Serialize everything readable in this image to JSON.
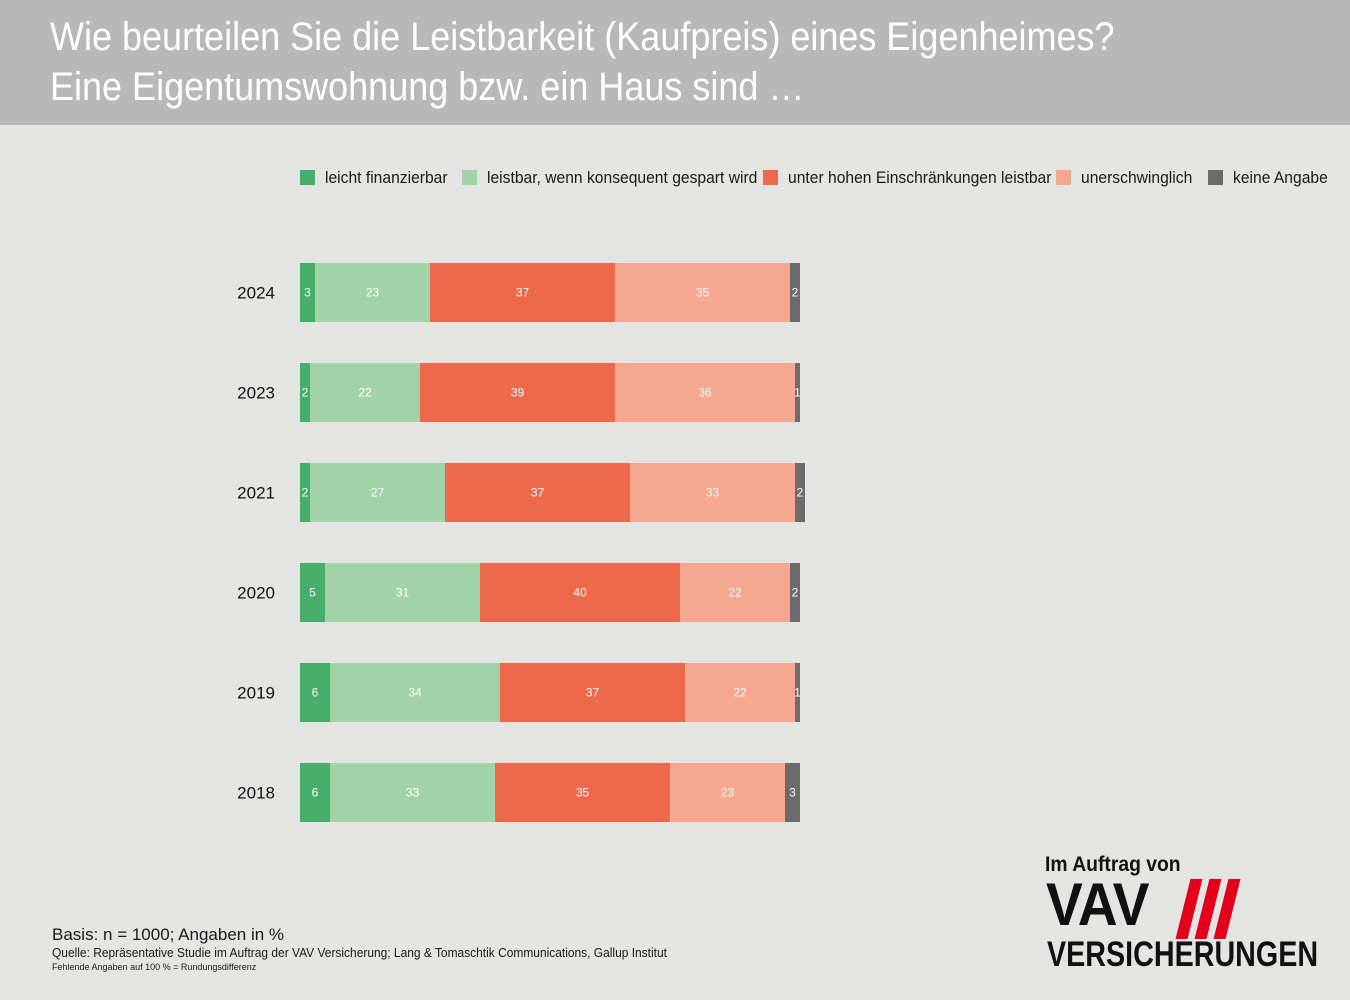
{
  "header": {
    "title_line1": "Wie beurteilen Sie die Leistbarkeit (Kaufpreis) eines Eigenheimes?",
    "title_line2": "Eine Eigentumswohnung bzw. ein Haus sind …"
  },
  "legend": [
    {
      "label": "leicht finanzierbar",
      "color": "#46ae6a"
    },
    {
      "label": "leistbar, wenn konsequent gespart wird",
      "color": "#a2d2a8"
    },
    {
      "label": "unter hohen Einschränkungen leistbar",
      "color": "#ee694b"
    },
    {
      "label": "unerschwinglich",
      "color": "#f5a88f"
    },
    {
      "label": "keine Angabe",
      "color": "#6b6b6b"
    }
  ],
  "chart_data": {
    "type": "bar",
    "orientation": "horizontal",
    "stacked": true,
    "categories": [
      "2024",
      "2023",
      "2021",
      "2020",
      "2019",
      "2018"
    ],
    "series": [
      {
        "name": "leicht finanzierbar",
        "values": [
          3,
          2,
          2,
          5,
          6,
          6
        ]
      },
      {
        "name": "leistbar, wenn konsequent gespart wird",
        "values": [
          23,
          22,
          27,
          31,
          34,
          33
        ]
      },
      {
        "name": "unter hohen Einschränkungen leistbar",
        "values": [
          37,
          39,
          37,
          40,
          37,
          35
        ]
      },
      {
        "name": "unerschwinglich",
        "values": [
          35,
          36,
          33,
          22,
          22,
          23
        ]
      },
      {
        "name": "keine Angabe",
        "values": [
          2,
          1,
          2,
          2,
          1,
          3
        ]
      }
    ],
    "xlim": [
      0,
      100
    ],
    "unit": "%",
    "legend_position": "top"
  },
  "footer": {
    "basis": "Basis: n = 1000; Angaben in %",
    "source": "Quelle: Repräsentative Studie im Auftrag der VAV Versicherung; Lang & Tomaschtik Communications, Gallup Institut",
    "note": "Fehlende Angaben auf 100 % = Rundungsdifferenz"
  },
  "logo": {
    "caption": "Im Auftrag von",
    "brand": "VAV",
    "subtitle": "VERSICHERUNGEN",
    "stripe_color": "#e2001a"
  }
}
